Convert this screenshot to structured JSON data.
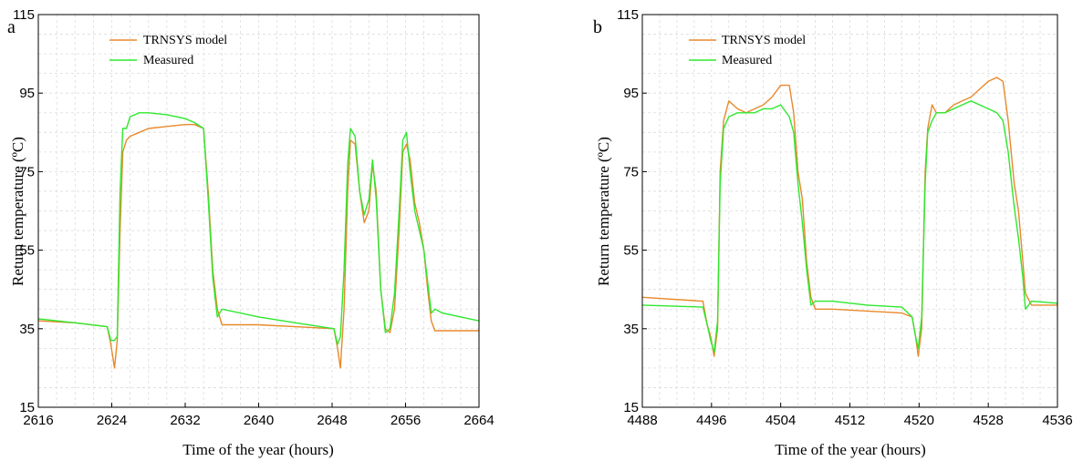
{
  "chart_data": [
    {
      "type": "line",
      "panel_label": "a",
      "xlabel": "Time of the year (hours)",
      "ylabel": "Return temperature (ºC)",
      "xlim": [
        2616,
        2664
      ],
      "ylim": [
        15,
        115
      ],
      "xticks": [
        "2616",
        "2624",
        "2632",
        "2640",
        "2648",
        "2656",
        "2664"
      ],
      "yticks": [
        "15",
        "35",
        "55",
        "75",
        "95",
        "115"
      ],
      "grid": true,
      "legend_position": "top-left",
      "series": [
        {
          "name": "TRNSYS model",
          "color": "#e8892b",
          "x": [
            2616,
            2620,
            2623.5,
            2623.9,
            2624.3,
            2624.6,
            2624.9,
            2625.2,
            2625.6,
            2626,
            2627,
            2628,
            2630,
            2632,
            2633,
            2634,
            2634.5,
            2635,
            2635.5,
            2636,
            2640,
            2644,
            2648.2,
            2648.6,
            2648.9,
            2649.3,
            2649.7,
            2650,
            2650.5,
            2651,
            2651.5,
            2652,
            2652.4,
            2652.8,
            2653.3,
            2653.8,
            2654.3,
            2654.8,
            2655.3,
            2655.7,
            2656.1,
            2656.5,
            2657,
            2657.5,
            2658,
            2658.4,
            2658.8,
            2659.2,
            2660,
            2664
          ],
          "values": [
            37,
            36.5,
            35.5,
            31,
            25,
            32,
            60,
            80,
            83,
            84,
            85,
            86,
            86.5,
            87,
            87,
            86,
            70,
            50,
            40,
            36,
            36,
            35.5,
            35,
            30,
            25,
            40,
            70,
            83,
            82,
            70,
            62,
            65,
            77,
            70,
            45,
            35,
            34,
            40,
            60,
            80,
            82,
            78,
            67,
            62,
            55,
            45,
            37,
            34.5,
            34.5,
            34.5
          ]
        },
        {
          "name": "Measured",
          "color": "#2ee82e",
          "x": [
            2616,
            2620,
            2623.5,
            2623.9,
            2624.3,
            2624.6,
            2624.9,
            2625.2,
            2625.6,
            2626,
            2627,
            2628,
            2630,
            2632,
            2633,
            2634,
            2634.5,
            2635,
            2635.5,
            2636,
            2640,
            2644,
            2648.2,
            2648.6,
            2648.9,
            2649.3,
            2649.7,
            2650,
            2650.5,
            2651,
            2651.5,
            2652,
            2652.4,
            2652.8,
            2653.3,
            2653.8,
            2654.3,
            2654.8,
            2655.3,
            2655.7,
            2656.1,
            2656.5,
            2657,
            2657.5,
            2658,
            2658.4,
            2658.8,
            2659.2,
            2660,
            2664
          ],
          "values": [
            37.5,
            36.5,
            35.5,
            32,
            32,
            33,
            70,
            86,
            86,
            89,
            90,
            90,
            89.5,
            88.5,
            87.5,
            86,
            68,
            48,
            38,
            40,
            38,
            36.5,
            35,
            31,
            33,
            50,
            77,
            86,
            84,
            70,
            64,
            68,
            78,
            68,
            45,
            34,
            35,
            44,
            65,
            83,
            85,
            75,
            65,
            60,
            55,
            47,
            39,
            40,
            39,
            37
          ]
        }
      ]
    },
    {
      "type": "line",
      "panel_label": "b",
      "xlabel": "Time of the year (hours)",
      "ylabel": "Return temperature (ºC)",
      "xlim": [
        4488,
        4536
      ],
      "ylim": [
        15,
        115
      ],
      "xticks": [
        "4488",
        "4496",
        "4504",
        "4512",
        "4520",
        "4528",
        "4536"
      ],
      "yticks": [
        "15",
        "35",
        "55",
        "75",
        "95",
        "115"
      ],
      "grid": true,
      "legend_position": "top-left",
      "series": [
        {
          "name": "TRNSYS model",
          "color": "#e8892b",
          "x": [
            4488,
            4495,
            4495.5,
            4495.9,
            4496.3,
            4496.7,
            4497,
            4497.4,
            4498,
            4499,
            4500,
            4501,
            4502,
            4503,
            4504,
            4505,
            4505.5,
            4506,
            4506.5,
            4507,
            4507.5,
            4508,
            4510,
            4514,
            4518,
            4519.2,
            4519.6,
            4519.9,
            4520.3,
            4520.7,
            4521,
            4521.5,
            4522,
            4523,
            4524,
            4525,
            4526,
            4527,
            4528,
            4529,
            4529.7,
            4530.3,
            4531,
            4531.5,
            4532,
            4532.3,
            4533,
            4536
          ],
          "values": [
            43,
            42,
            36,
            33,
            28,
            35,
            75,
            88,
            93,
            91,
            90,
            91,
            92,
            94,
            97,
            97,
            90,
            75,
            68,
            52,
            43,
            40,
            40,
            39.5,
            39,
            38,
            33,
            28,
            35,
            75,
            86,
            92,
            90,
            90,
            92,
            93,
            94,
            96,
            98,
            99,
            98,
            88,
            72,
            65,
            52,
            44,
            41,
            41
          ]
        },
        {
          "name": "Measured",
          "color": "#2ee82e",
          "x": [
            4488,
            4495,
            4495.5,
            4495.9,
            4496.3,
            4496.7,
            4497,
            4497.4,
            4498,
            4499,
            4500,
            4501,
            4502,
            4503,
            4504,
            4505,
            4505.5,
            4506,
            4506.5,
            4507,
            4507.5,
            4508,
            4510,
            4514,
            4518,
            4519.2,
            4519.6,
            4519.9,
            4520.3,
            4520.7,
            4521,
            4521.5,
            4522,
            4523,
            4524,
            4525,
            4526,
            4527,
            4528,
            4529,
            4529.7,
            4530.3,
            4531,
            4531.5,
            4532,
            4532.3,
            4533,
            4536
          ],
          "values": [
            41,
            40.5,
            36,
            32,
            29,
            37,
            72,
            86,
            89,
            90,
            90,
            90,
            91,
            91,
            92,
            89,
            85,
            72,
            62,
            50,
            41,
            42,
            42,
            41,
            40.5,
            38,
            33,
            30,
            38,
            72,
            85,
            88,
            90,
            90,
            91,
            92,
            93,
            92,
            91,
            90,
            88,
            80,
            66,
            58,
            48,
            40,
            42,
            41.5
          ]
        }
      ]
    }
  ]
}
